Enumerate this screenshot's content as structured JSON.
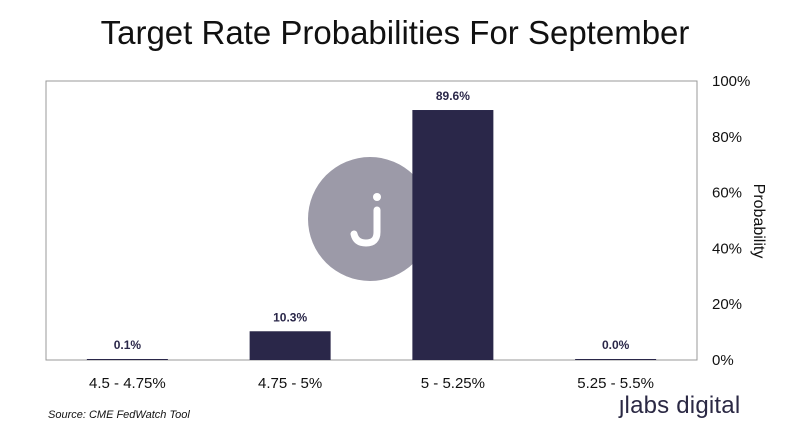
{
  "chart_data": {
    "type": "bar",
    "title": "Target Rate Probabilities For September",
    "categories": [
      "4.5 - 4.75%",
      "4.75 - 5%",
      "5 - 5.25%",
      "5.25 - 5.5%"
    ],
    "values": [
      0.1,
      10.3,
      89.6,
      0.0
    ],
    "value_labels": [
      "0.1%",
      "10.3%",
      "89.6%",
      "0.0%"
    ],
    "ylabel": "Probability",
    "xlabel": "",
    "ylim": [
      0,
      100
    ],
    "yticks": [
      0,
      20,
      40,
      60,
      80,
      100
    ],
    "ytick_labels": [
      "0%",
      "20%",
      "40%",
      "60%",
      "80%",
      "100%"
    ],
    "y_axis_side": "right",
    "grid": false,
    "bar_color": "#2a2749"
  },
  "source": "Source: CME FedWatch Tool",
  "brand": {
    "logo_text": "labs digital",
    "watermark_icon": "j-logo-icon",
    "watermark_color": "#9c9aa8"
  }
}
